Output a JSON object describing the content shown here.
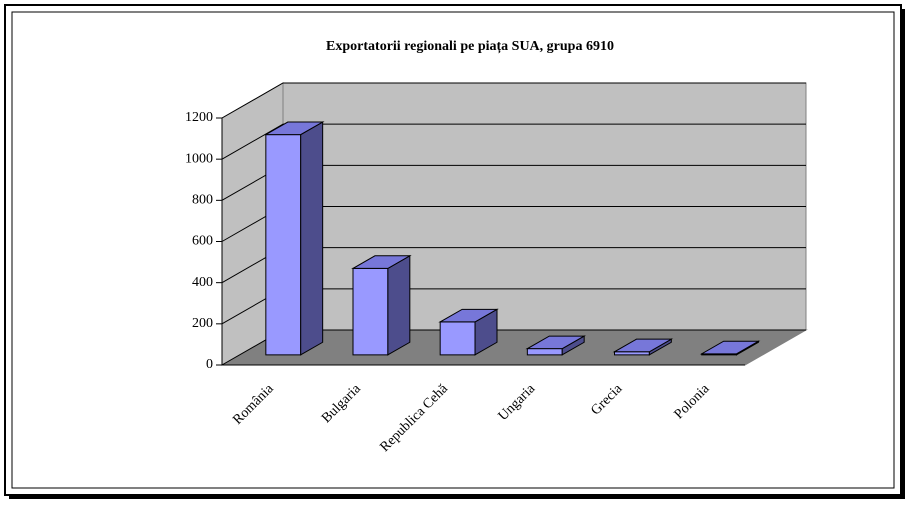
{
  "chart_data": {
    "type": "bar3d",
    "title": "Exportatorii regionali pe piața SUA, grupa 6910",
    "categories": [
      "România",
      "Bulgaria",
      "Republica Cehă",
      "Ungaria",
      "Grecia",
      "Polonia"
    ],
    "values": [
      1070,
      420,
      160,
      30,
      15,
      5
    ],
    "color": "#9999ff",
    "ylim": [
      0,
      1200
    ],
    "yticks": [
      0,
      200,
      400,
      600,
      800,
      1000,
      1200
    ],
    "grid": true
  }
}
